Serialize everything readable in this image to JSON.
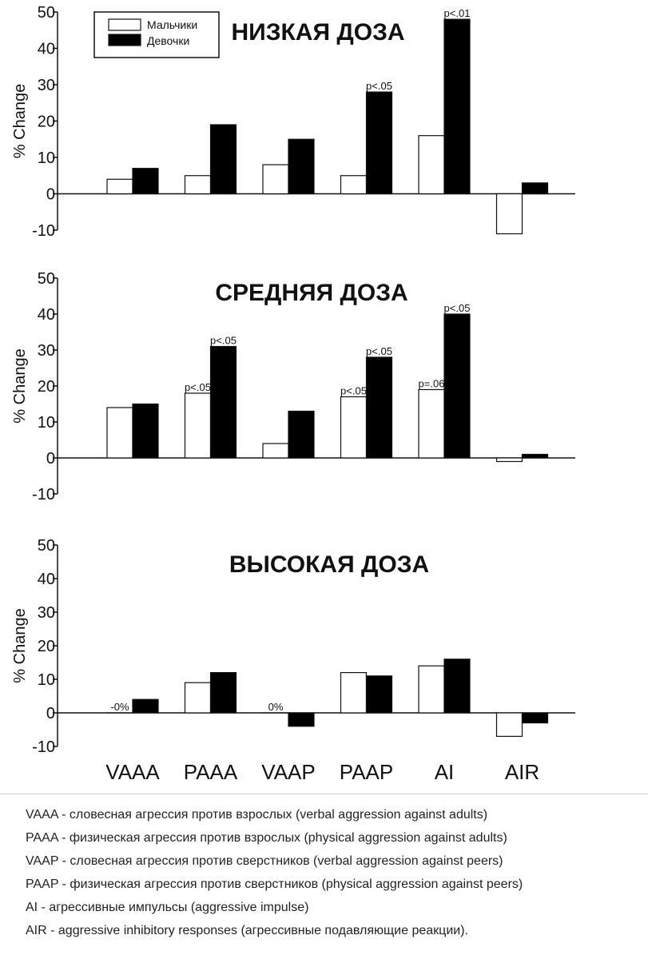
{
  "legend": {
    "boys": "Мальчики",
    "girls": "Девочки"
  },
  "categories_axis": [
    "VAAA",
    "PAAA",
    "VAAP",
    "PAAP",
    "AI",
    "AIR"
  ],
  "chart_data": [
    {
      "type": "bar",
      "title": "НИЗКАЯ ДОЗА",
      "ylabel": "% Change",
      "ylim": [
        -10,
        50
      ],
      "yticks": [
        -10,
        0,
        10,
        20,
        30,
        40,
        50
      ],
      "categories": [
        "VAAA",
        "PAAA",
        "VAAP",
        "PAAP",
        "AI",
        "AIR"
      ],
      "series": [
        {
          "name": "Мальчики",
          "values": [
            4,
            5,
            8,
            5,
            16,
            -11
          ]
        },
        {
          "name": "Девочки",
          "values": [
            7,
            19,
            15,
            28,
            48,
            3
          ]
        }
      ],
      "annotations": [
        {
          "category": "PAAP",
          "series": "Девочки",
          "text": "p<.05"
        },
        {
          "category": "AI",
          "series": "Девочки",
          "text": "p<.01"
        }
      ]
    },
    {
      "type": "bar",
      "title": "СРЕДНЯЯ ДОЗА",
      "ylabel": "% Change",
      "ylim": [
        -10,
        50
      ],
      "yticks": [
        -10,
        0,
        10,
        20,
        30,
        40,
        50
      ],
      "categories": [
        "VAAA",
        "PAAA",
        "VAAP",
        "PAAP",
        "AI",
        "AIR"
      ],
      "series": [
        {
          "name": "Мальчики",
          "values": [
            14,
            18,
            4,
            17,
            19,
            -1
          ]
        },
        {
          "name": "Девочки",
          "values": [
            15,
            31,
            13,
            28,
            40,
            1
          ]
        }
      ],
      "annotations": [
        {
          "category": "PAAA",
          "series": "Мальчики",
          "text": "p<.05"
        },
        {
          "category": "PAAA",
          "series": "Девочки",
          "text": "p<.05"
        },
        {
          "category": "PAAP",
          "series": "Мальчики",
          "text": "p<.05"
        },
        {
          "category": "PAAP",
          "series": "Девочки",
          "text": "p<.05"
        },
        {
          "category": "AI",
          "series": "Мальчики",
          "text": "p=.06"
        },
        {
          "category": "AI",
          "series": "Девочки",
          "text": "p<.05"
        }
      ]
    },
    {
      "type": "bar",
      "title": "ВЫСОКАЯ ДОЗА",
      "ylabel": "% Change",
      "ylim": [
        -10,
        50
      ],
      "yticks": [
        -10,
        0,
        10,
        20,
        30,
        40,
        50
      ],
      "categories": [
        "VAAA",
        "PAAA",
        "VAAP",
        "PAAP",
        "AI",
        "AIR"
      ],
      "series": [
        {
          "name": "Мальчики",
          "values": [
            0,
            9,
            0,
            12,
            14,
            -7
          ]
        },
        {
          "name": "Девочки",
          "values": [
            4,
            12,
            -4,
            11,
            16,
            -3
          ]
        }
      ],
      "annotations": [
        {
          "category": "VAAA",
          "series": "Мальчики",
          "text": "-0%"
        },
        {
          "category": "VAAP",
          "series": "Мальчики",
          "text": "0%"
        }
      ]
    }
  ],
  "abbreviations": [
    "VAAA - словесная агрессия против взрослых (verbal aggression against adults)",
    "PAAA - физическая агрессия против взрослых (physical aggression against adults)",
    "VAAP - словесная агрессия против сверстников (verbal aggression against peers)",
    "PAAP - физическая агрессия против сверстников (physical aggression against peers)",
    "AI - агрессивные импульсы (aggressive impulse)",
    "AIR -  aggressive inhibitory responses (агрессивные подавляющие реакции)."
  ]
}
